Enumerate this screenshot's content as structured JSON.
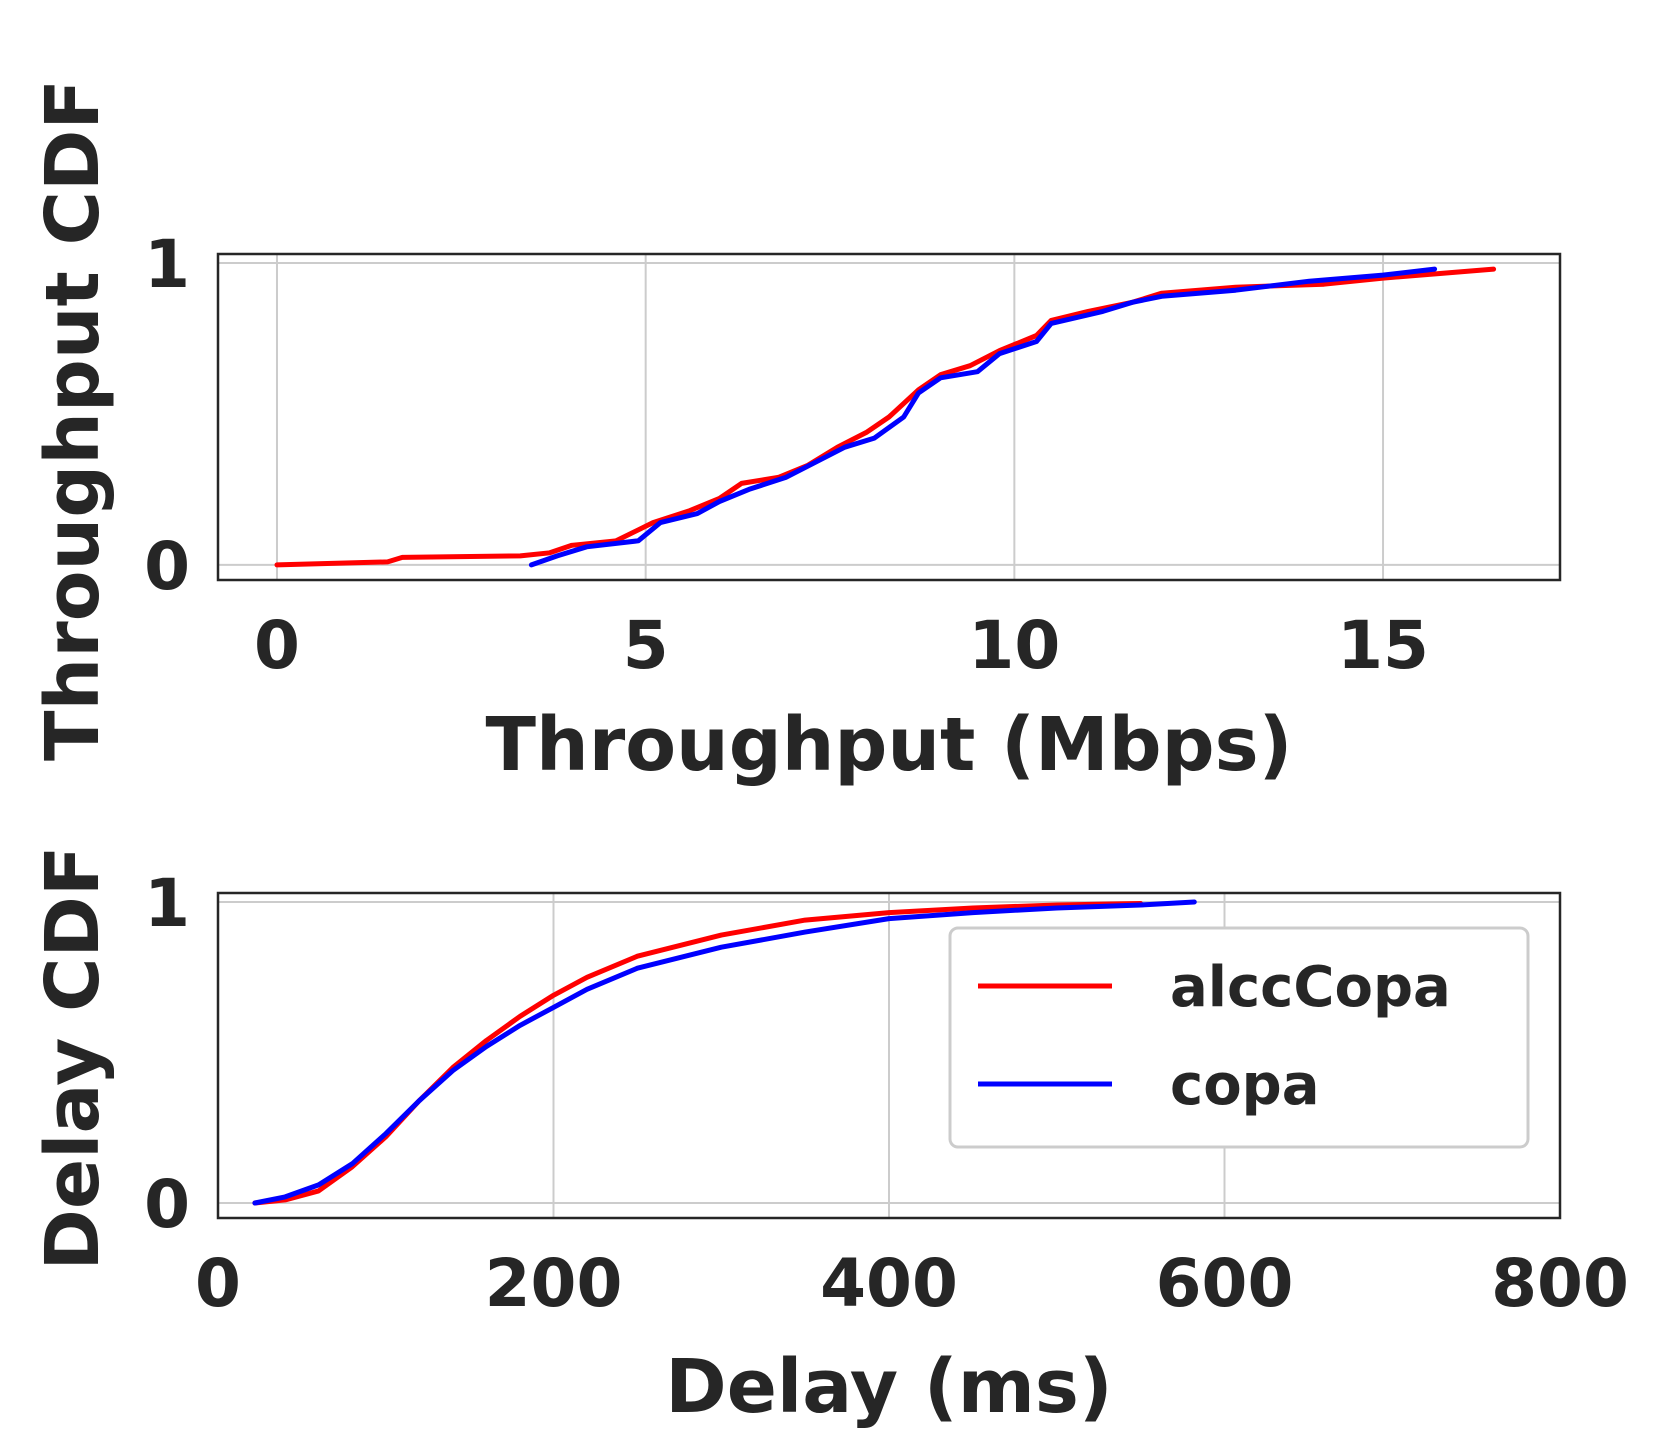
{
  "chart_data": [
    {
      "type": "line",
      "xlabel": "Throughput (Mbps)",
      "ylabel": "Throughput CDF",
      "xlim": [
        -0.8,
        17.4
      ],
      "ylim": [
        -0.05,
        1.03
      ],
      "xticks": [
        0,
        5,
        10,
        15
      ],
      "xtick_labels": [
        "0",
        "5",
        "10",
        "15"
      ],
      "yticks": [
        0,
        1
      ],
      "ytick_labels": [
        "0",
        "1"
      ],
      "grid": true,
      "series": [
        {
          "name": "alccCopa",
          "color": "#ff0000",
          "points": [
            [
              0,
              0.0
            ],
            [
              1.5,
              0.01
            ],
            [
              1.7,
              0.025
            ],
            [
              3.3,
              0.03
            ],
            [
              3.7,
              0.04
            ],
            [
              4.0,
              0.065
            ],
            [
              4.6,
              0.08
            ],
            [
              5.1,
              0.14
            ],
            [
              5.6,
              0.18
            ],
            [
              6.0,
              0.22
            ],
            [
              6.3,
              0.27
            ],
            [
              6.8,
              0.29
            ],
            [
              7.2,
              0.33
            ],
            [
              7.6,
              0.39
            ],
            [
              8.0,
              0.44
            ],
            [
              8.3,
              0.49
            ],
            [
              8.7,
              0.58
            ],
            [
              9.0,
              0.63
            ],
            [
              9.4,
              0.66
            ],
            [
              9.8,
              0.71
            ],
            [
              10.3,
              0.76
            ],
            [
              10.5,
              0.81
            ],
            [
              11.0,
              0.84
            ],
            [
              11.6,
              0.87
            ],
            [
              12.0,
              0.9
            ],
            [
              13.0,
              0.92
            ],
            [
              14.2,
              0.93
            ],
            [
              15.0,
              0.95
            ],
            [
              16.0,
              0.97
            ],
            [
              16.5,
              0.98
            ]
          ]
        },
        {
          "name": "copa",
          "color": "#0000ff",
          "points": [
            [
              3.45,
              0.0
            ],
            [
              3.8,
              0.03
            ],
            [
              4.2,
              0.06
            ],
            [
              4.9,
              0.08
            ],
            [
              5.2,
              0.14
            ],
            [
              5.7,
              0.17
            ],
            [
              6.0,
              0.21
            ],
            [
              6.4,
              0.25
            ],
            [
              6.9,
              0.29
            ],
            [
              7.3,
              0.34
            ],
            [
              7.7,
              0.39
            ],
            [
              8.1,
              0.42
            ],
            [
              8.5,
              0.49
            ],
            [
              8.7,
              0.57
            ],
            [
              9.0,
              0.62
            ],
            [
              9.5,
              0.64
            ],
            [
              9.8,
              0.7
            ],
            [
              10.3,
              0.74
            ],
            [
              10.5,
              0.8
            ],
            [
              11.2,
              0.84
            ],
            [
              11.6,
              0.87
            ],
            [
              12.0,
              0.89
            ],
            [
              13.0,
              0.91
            ],
            [
              14.0,
              0.94
            ],
            [
              15.0,
              0.96
            ],
            [
              15.7,
              0.98
            ]
          ]
        }
      ]
    },
    {
      "type": "line",
      "xlabel": "Delay (ms)",
      "ylabel": "Delay CDF",
      "xlim": [
        0,
        800
      ],
      "ylim": [
        -0.05,
        1.03
      ],
      "xticks": [
        0,
        200,
        400,
        600,
        800
      ],
      "xtick_labels": [
        "0",
        "200",
        "400",
        "600",
        "800"
      ],
      "yticks": [
        0,
        1
      ],
      "ytick_labels": [
        "0",
        "1"
      ],
      "grid": true,
      "legend": "upper-right",
      "series": [
        {
          "name": "alccCopa",
          "color": "#ff0000",
          "points": [
            [
              22,
              0.0
            ],
            [
              40,
              0.01
            ],
            [
              60,
              0.04
            ],
            [
              80,
              0.12
            ],
            [
              100,
              0.22
            ],
            [
              120,
              0.34
            ],
            [
              140,
              0.45
            ],
            [
              160,
              0.54
            ],
            [
              180,
              0.62
            ],
            [
              200,
              0.69
            ],
            [
              220,
              0.75
            ],
            [
              250,
              0.82
            ],
            [
              300,
              0.89
            ],
            [
              350,
              0.94
            ],
            [
              400,
              0.965
            ],
            [
              450,
              0.98
            ],
            [
              500,
              0.99
            ],
            [
              550,
              0.995
            ]
          ]
        },
        {
          "name": "copa",
          "color": "#0000ff",
          "points": [
            [
              22,
              0.0
            ],
            [
              40,
              0.02
            ],
            [
              60,
              0.06
            ],
            [
              80,
              0.13
            ],
            [
              100,
              0.23
            ],
            [
              120,
              0.34
            ],
            [
              140,
              0.44
            ],
            [
              160,
              0.52
            ],
            [
              180,
              0.59
            ],
            [
              200,
              0.65
            ],
            [
              220,
              0.71
            ],
            [
              250,
              0.78
            ],
            [
              300,
              0.85
            ],
            [
              350,
              0.9
            ],
            [
              400,
              0.945
            ],
            [
              450,
              0.965
            ],
            [
              500,
              0.98
            ],
            [
              550,
              0.99
            ],
            [
              582,
              1.0
            ]
          ]
        }
      ]
    }
  ]
}
